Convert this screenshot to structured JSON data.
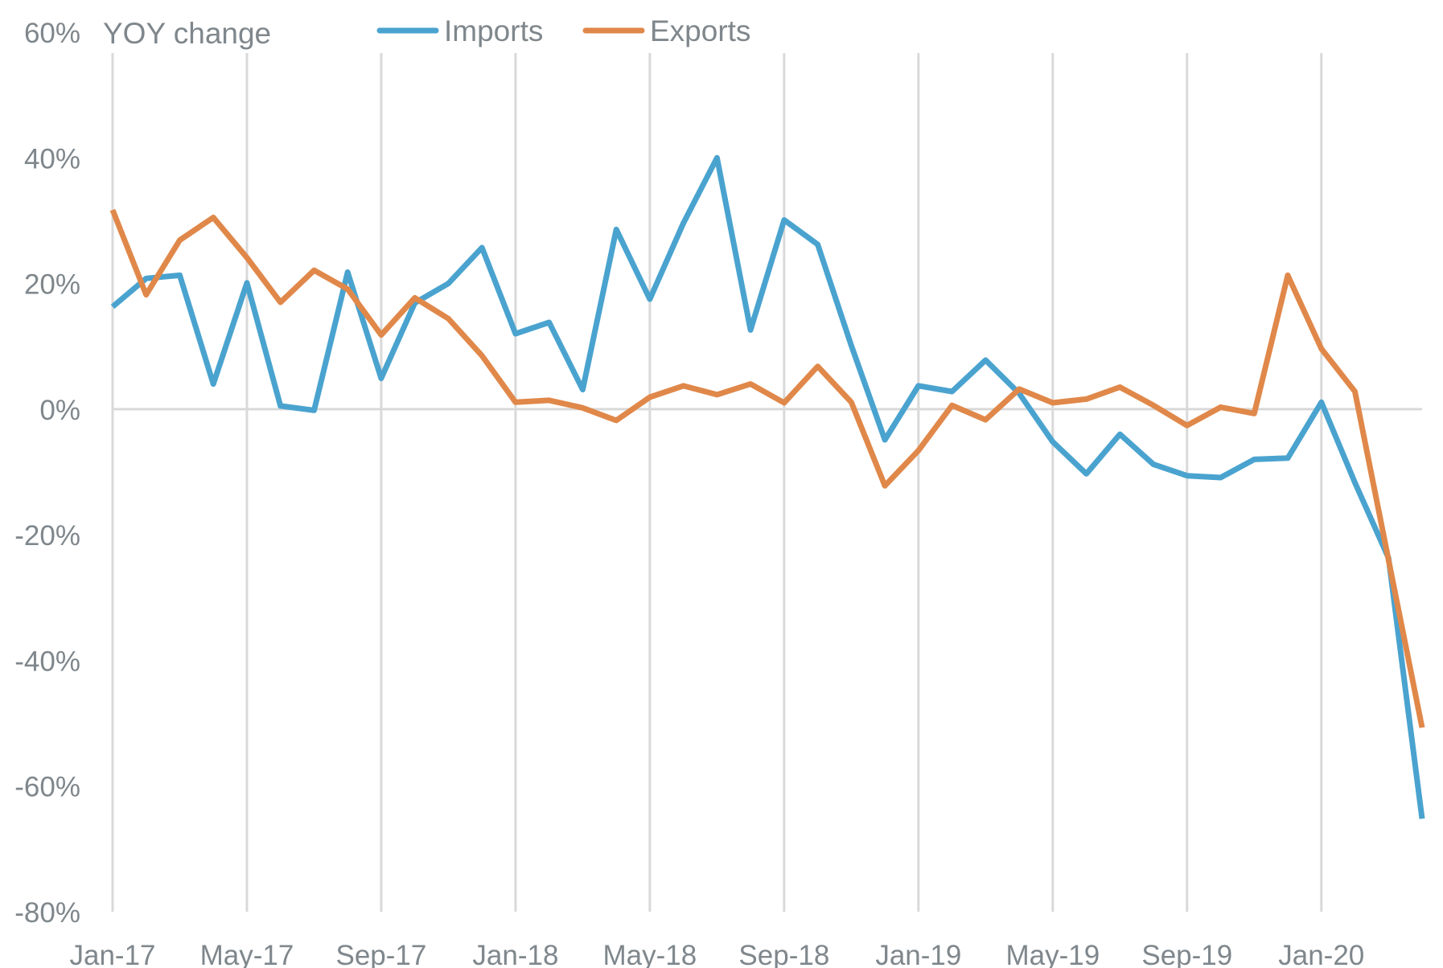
{
  "chart_data": {
    "type": "line",
    "ylabel": "YOY change",
    "ylim": [
      -80,
      60
    ],
    "y_ticks": [
      "60%",
      "40%",
      "20%",
      "0%",
      "-20%",
      "-40%",
      "-60%",
      "-80%"
    ],
    "y_tick_values": [
      60,
      40,
      20,
      0,
      -20,
      -40,
      -60,
      -80
    ],
    "x_tick_labels": [
      "Jan-17",
      "May-17",
      "Sep-17",
      "Jan-18",
      "May-18",
      "Sep-18",
      "Jan-19",
      "May-19",
      "Sep-19",
      "Jan-20"
    ],
    "x": [
      "Jan-17",
      "Feb-17",
      "Mar-17",
      "Apr-17",
      "May-17",
      "Jun-17",
      "Jul-17",
      "Aug-17",
      "Sep-17",
      "Oct-17",
      "Nov-17",
      "Dec-17",
      "Jan-18",
      "Feb-18",
      "Mar-18",
      "Apr-18",
      "May-18",
      "Jun-18",
      "Jul-18",
      "Aug-18",
      "Sep-18",
      "Oct-18",
      "Nov-18",
      "Dec-18",
      "Jan-19",
      "Feb-19",
      "Mar-19",
      "Apr-19",
      "May-19",
      "Jun-19",
      "Jul-19",
      "Aug-19",
      "Sep-19",
      "Oct-19",
      "Nov-19",
      "Dec-19",
      "Jan-20",
      "Feb-20",
      "Mar-20",
      "Apr-20"
    ],
    "grid": true,
    "legend_position": "top",
    "series": [
      {
        "name": "Imports",
        "color": "#4aa3cf",
        "values": [
          16.3,
          20.8,
          21.3,
          4.0,
          20.1,
          0.5,
          -0.2,
          21.8,
          4.9,
          16.9,
          20.0,
          25.7,
          12.0,
          13.8,
          3.1,
          28.6,
          17.5,
          29.6,
          40.0,
          12.6,
          30.1,
          26.2,
          10.1,
          -4.9,
          3.7,
          2.8,
          7.8,
          2.5,
          -5.2,
          -10.3,
          -4.0,
          -8.8,
          -10.6,
          -10.9,
          -8.0,
          -7.8,
          1.1,
          -11.7,
          -23.7,
          -65.2
        ]
      },
      {
        "name": "Exports",
        "color": "#e0884a",
        "values": [
          31.7,
          18.2,
          26.9,
          30.5,
          24.1,
          17.0,
          22.1,
          19.1,
          11.8,
          17.7,
          14.4,
          8.5,
          1.1,
          1.4,
          0.2,
          -1.8,
          1.9,
          3.7,
          2.3,
          4.0,
          1.0,
          6.8,
          1.1,
          -12.2,
          -6.6,
          0.6,
          -1.7,
          3.2,
          1.0,
          1.6,
          3.5,
          0.6,
          -2.6,
          0.3,
          -0.7,
          21.3,
          9.6,
          2.8,
          -24.0,
          -50.7
        ]
      }
    ]
  }
}
